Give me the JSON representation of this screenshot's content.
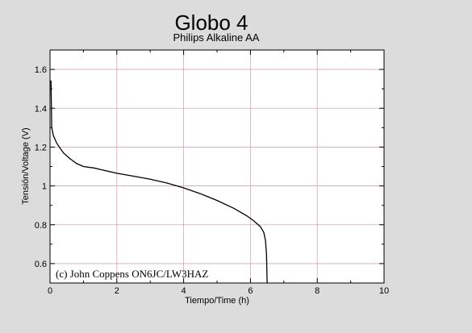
{
  "chart_data": {
    "type": "line",
    "title": "Globo 4",
    "subtitle": "Philips Alkaline AA",
    "xlabel": "Tiempo/Time (h)",
    "ylabel": "Tensión/Voltage (V)",
    "xlim": [
      0,
      10
    ],
    "ylim": [
      0.5,
      1.7
    ],
    "xticks": [
      0,
      2,
      4,
      6,
      8,
      10
    ],
    "xtick_labels": [
      "0",
      "2",
      "4",
      "6",
      "8",
      "10"
    ],
    "yticks": [
      0.6,
      0.8,
      1,
      1.2,
      1.4,
      1.6
    ],
    "ytick_labels": [
      "0.6",
      "0.8",
      "1",
      "1.2",
      "1.4",
      "1.6"
    ],
    "grid": true,
    "annotation": "(c) John Coppens ON6JC/LW3HAZ",
    "series": [
      {
        "points": [
          [
            0.0,
            1.54
          ],
          [
            0.03,
            1.54
          ],
          [
            0.05,
            1.3
          ],
          [
            0.1,
            1.26
          ],
          [
            0.2,
            1.22
          ],
          [
            0.4,
            1.17
          ],
          [
            0.6,
            1.14
          ],
          [
            0.8,
            1.115
          ],
          [
            1.0,
            1.1
          ],
          [
            1.2,
            1.095
          ],
          [
            1.3,
            1.093
          ],
          [
            1.5,
            1.085
          ],
          [
            2.0,
            1.065
          ],
          [
            2.5,
            1.05
          ],
          [
            3.0,
            1.035
          ],
          [
            3.5,
            1.015
          ],
          [
            4.0,
            0.99
          ],
          [
            4.5,
            0.96
          ],
          [
            5.0,
            0.925
          ],
          [
            5.5,
            0.885
          ],
          [
            5.9,
            0.845
          ],
          [
            6.1,
            0.82
          ],
          [
            6.3,
            0.79
          ],
          [
            6.4,
            0.76
          ],
          [
            6.45,
            0.72
          ],
          [
            6.48,
            0.65
          ],
          [
            6.5,
            0.5
          ]
        ]
      }
    ]
  }
}
